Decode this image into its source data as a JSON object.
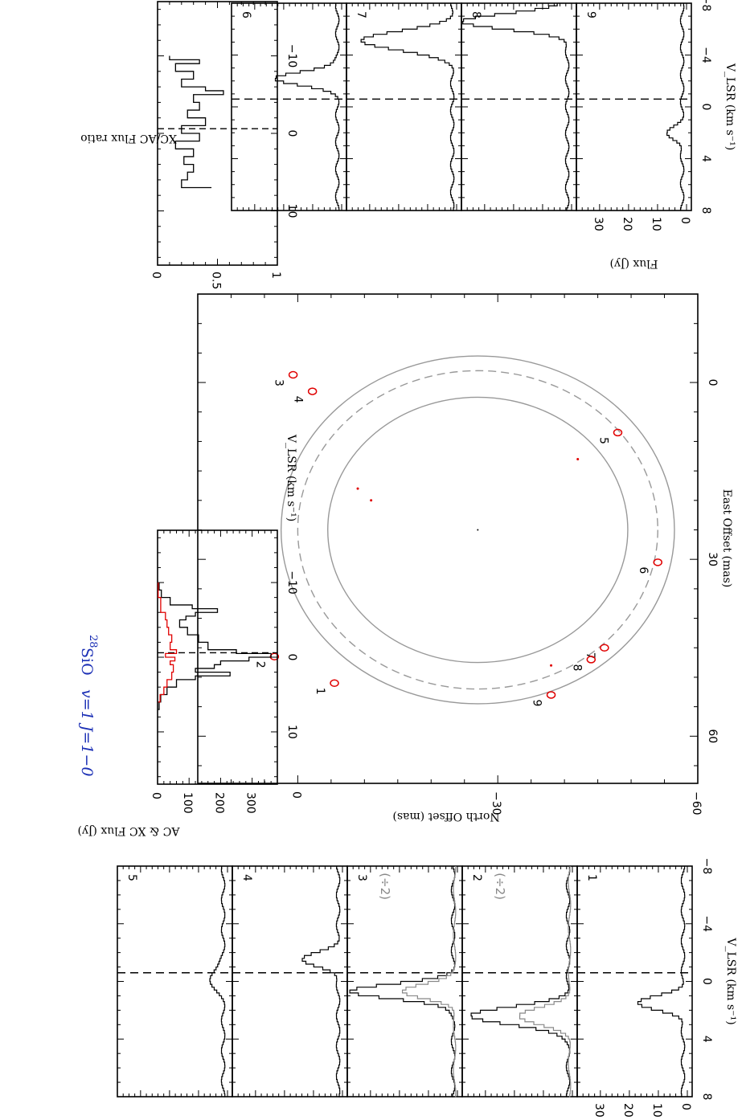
{
  "title": {
    "molecule_sup": "28",
    "molecule": "SiO",
    "transition": "v=1  J=1−0",
    "color": "#1b2fb5"
  },
  "colors": {
    "xc": "#e00000",
    "ac": "#000000",
    "ring": "#999999",
    "dim": "#888888"
  },
  "divide_label": "(÷2)",
  "chart_data": [
    {
      "id": "map",
      "type": "scatter",
      "xlabel": "East Offset (mas)",
      "ylabel": "North Offset (mas)",
      "xlim": [
        -15,
        68
      ],
      "ylim": [
        -60,
        15
      ],
      "x_ticks": [
        0,
        30,
        60
      ],
      "y_ticks": [
        0,
        -30,
        -60
      ],
      "center": [
        25,
        -27
      ],
      "rings_mas": [
        22.5,
        27,
        29.5
      ],
      "features": [
        {
          "label": "1",
          "x": 51,
          "y": -5.5
        },
        {
          "label": "2",
          "x": 46.5,
          "y": 3.5
        },
        {
          "label": "3",
          "x": -1.3,
          "y": 0.7
        },
        {
          "label": "4",
          "x": 1.5,
          "y": -2.2
        },
        {
          "label": "5",
          "x": 8.5,
          "y": -48
        },
        {
          "label": "6",
          "x": 30.5,
          "y": -54
        },
        {
          "label": "7",
          "x": 45,
          "y": -46
        },
        {
          "label": "8",
          "x": 47,
          "y": -44
        },
        {
          "label": "9",
          "x": 53,
          "y": -38
        }
      ]
    },
    {
      "id": "total-flux",
      "type": "line",
      "xlabel": "V_LSR (km s⁻¹)",
      "ylabel": "AC & XC  Flux (Jy)",
      "xlim": [
        -17,
        17
      ],
      "ylim": [
        0,
        380
      ],
      "x_ticks": [
        -10,
        0,
        10
      ],
      "y_ticks": [
        0,
        100,
        200,
        300
      ],
      "series": [
        {
          "name": "AC",
          "x": [
            -10,
            -9,
            -8,
            -7,
            -6.5,
            -6,
            -5.5,
            -5,
            -4,
            -3,
            -2,
            -1,
            -0.5,
            0,
            0.5,
            1,
            1.5,
            2,
            2.5,
            3,
            4,
            5,
            6,
            7
          ],
          "y": [
            5,
            12,
            40,
            110,
            190,
            120,
            90,
            70,
            95,
            130,
            160,
            250,
            360,
            290,
            200,
            180,
            120,
            230,
            120,
            60,
            30,
            10,
            5,
            2
          ]
        },
        {
          "name": "XC",
          "x": [
            -10,
            -8,
            -6,
            -5,
            -4,
            -3,
            -2,
            -1,
            -0.5,
            0,
            0.5,
            1,
            2,
            3,
            4,
            5,
            6
          ],
          "y": [
            2,
            10,
            25,
            30,
            35,
            45,
            40,
            60,
            25,
            55,
            40,
            50,
            45,
            30,
            20,
            8,
            2
          ]
        }
      ]
    },
    {
      "id": "flux-ratio",
      "type": "line",
      "xlabel": "V_LSR (km s⁻¹)",
      "ylabel": "XC/AC Flux ratio",
      "xlim": [
        -17,
        17
      ],
      "ylim": [
        0,
        1
      ],
      "x_ticks": [
        -10,
        0,
        10
      ],
      "y_ticks": [
        0,
        0.5,
        1
      ],
      "series": [
        {
          "name": "ratio",
          "x": [
            -10,
            -9.5,
            -9,
            -8,
            -7,
            -6,
            -5.5,
            -5,
            -4,
            -3,
            -2,
            -1,
            0,
            1,
            2,
            3,
            4,
            5,
            6,
            7
          ],
          "y": [
            0.1,
            0.35,
            0.15,
            0.3,
            0.2,
            0.4,
            0.55,
            0.3,
            0.35,
            0.25,
            0.4,
            0.2,
            0.35,
            0.15,
            0.3,
            0.22,
            0.3,
            0.25,
            0.2,
            0.45
          ]
        }
      ]
    },
    {
      "id": "spectra",
      "type": "line",
      "xlabel": "V_LSR (km s⁻¹)",
      "ylabel": "Flux (Jy)",
      "xlim": [
        -8,
        8
      ],
      "ylim": [
        0,
        38
      ],
      "x_ticks": [
        -8,
        -4,
        0,
        4,
        8
      ],
      "y_ticks": [
        0,
        10,
        20,
        30
      ],
      "vsys": -0.6,
      "panels": [
        {
          "label": "1",
          "peak_v": 1.4,
          "peak_y": 15,
          "width": 0.5
        },
        {
          "label": "2",
          "peak_v": 2.3,
          "peak_y": 34,
          "width": 0.6,
          "scaled": true
        },
        {
          "label": "3",
          "peak_v": 0.6,
          "peak_y": 36,
          "width": 0.5,
          "scaled": true
        },
        {
          "label": "4",
          "peak_v": -1.6,
          "peak_y": 12,
          "width": 0.5
        },
        {
          "label": "5",
          "peak_v": -0.3,
          "peak_y": 5,
          "width": 0.6
        },
        {
          "label": "6",
          "peak_v": -2.3,
          "peak_y": 22,
          "width": 0.5
        },
        {
          "label": "7",
          "peak_v": -5.2,
          "peak_y": 32,
          "width": 0.7
        },
        {
          "label": "8",
          "peak_v": -6.7,
          "peak_y": 36,
          "width": 0.6
        },
        {
          "label": "9",
          "peak_v": 2.0,
          "peak_y": 5,
          "width": 0.5
        }
      ]
    }
  ]
}
